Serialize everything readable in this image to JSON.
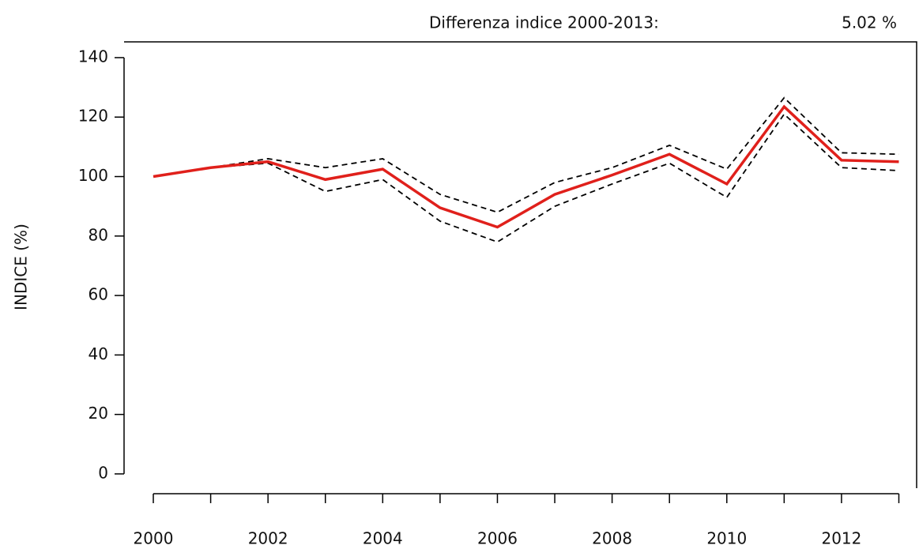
{
  "chart_data": {
    "type": "line",
    "annotation": {
      "text": "Differenza indice 2000-2013:",
      "value": 5.02,
      "value_label": "5.02 %"
    },
    "y_label": "INDICE (%)",
    "x": [
      2000,
      2001,
      2002,
      2003,
      2004,
      2005,
      2006,
      2007,
      2008,
      2009,
      2010,
      2011,
      2012,
      2013
    ],
    "series": [
      {
        "color": "#000000",
        "dash": true,
        "values": [
          null,
          103,
          106,
          103,
          106,
          94,
          88,
          98,
          103,
          110.5,
          102.5,
          126.5,
          108,
          107.5
        ]
      },
      {
        "color": "#000000",
        "dash": true,
        "values": [
          null,
          103,
          104.5,
          95,
          99,
          85,
          78,
          90,
          97.5,
          104.5,
          93,
          121,
          103,
          102
        ]
      },
      {
        "color": "#e0201b",
        "dash": false,
        "values": [
          100,
          103,
          105,
          99,
          102.5,
          89.5,
          83,
          94,
          100.5,
          107.5,
          97.5,
          123.5,
          105.5,
          105
        ]
      }
    ],
    "xlim": [
      1999.49,
      2013.31
    ],
    "ylim": [
      -4.8,
      145.3
    ],
    "xticks": [
      2000,
      2002,
      2004,
      2006,
      2008,
      2010,
      2012
    ],
    "xminor_ticks": [
      2001,
      2003,
      2005,
      2007,
      2009,
      2011,
      2013
    ],
    "yticks": [
      0,
      20,
      40,
      60,
      80,
      100,
      120,
      140
    ]
  }
}
